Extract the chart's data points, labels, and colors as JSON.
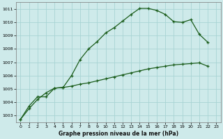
{
  "title": "Graphe pression niveau de la mer (hPa)",
  "bg_color": "#ceeaea",
  "grid_color": "#a8d4d4",
  "line_color": "#1a5c1a",
  "xlim": [
    -0.5,
    23.5
  ],
  "ylim": [
    1002.5,
    1011.5
  ],
  "yticks": [
    1003,
    1004,
    1005,
    1006,
    1007,
    1008,
    1009,
    1010,
    1011
  ],
  "xticks": [
    0,
    1,
    2,
    3,
    4,
    5,
    6,
    7,
    8,
    9,
    10,
    11,
    12,
    13,
    14,
    15,
    16,
    17,
    18,
    19,
    20,
    21,
    22,
    23
  ],
  "series1_y": [
    1002.7,
    1003.7,
    1004.4,
    1004.4,
    1005.05,
    1005.1,
    1006.0,
    1007.2,
    1008.0,
    1008.55,
    1009.2,
    1009.6,
    1010.1,
    1010.6,
    1011.05,
    1011.05,
    1010.9,
    1010.6,
    1010.05,
    1010.0,
    1010.2,
    1009.1,
    1008.5,
    null
  ],
  "series2_y": [
    1002.7,
    1003.5,
    1004.2,
    1004.7,
    1005.05,
    1005.1,
    1005.2,
    1005.35,
    1005.45,
    1005.6,
    1005.75,
    1005.9,
    1006.05,
    1006.2,
    1006.35,
    1006.5,
    1006.6,
    1006.7,
    1006.8,
    1006.85,
    1006.9,
    1006.95,
    1006.7,
    null
  ]
}
